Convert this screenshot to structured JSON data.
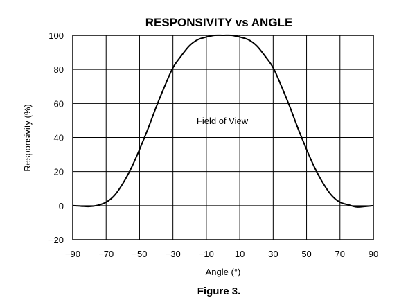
{
  "chart_data": {
    "type": "line",
    "title": "RESPONSIVITY vs ANGLE",
    "xlabel": "Angle (°)",
    "ylabel": "Responsivity (%)",
    "xlim": [
      -90,
      90
    ],
    "ylim": [
      -20,
      100
    ],
    "xticks": [
      -90,
      -70,
      -50,
      -30,
      -10,
      10,
      30,
      50,
      70,
      90
    ],
    "xtick_labels": [
      "−90",
      "−70",
      "−50",
      "−30",
      "−10",
      "10",
      "30",
      "50",
      "70",
      "90"
    ],
    "yticks": [
      -20,
      0,
      20,
      40,
      60,
      80,
      100
    ],
    "ytick_labels": [
      "−20",
      "0",
      "20",
      "40",
      "60",
      "80",
      "100"
    ],
    "grid": true,
    "annotation": "Field of View",
    "series": [
      {
        "x": [
          -90,
          -85,
          -80,
          -75,
          -70,
          -65,
          -60,
          -55,
          -50,
          -45,
          -40,
          -35,
          -30,
          -25,
          -20,
          -15,
          -10,
          -5,
          0,
          5,
          10,
          15,
          20,
          25,
          30,
          35,
          40,
          45,
          50,
          55,
          60,
          65,
          70,
          75,
          80,
          85,
          90
        ],
        "y": [
          0,
          -0.3,
          -0.5,
          0.2,
          2,
          6,
          13,
          22,
          33,
          45,
          58,
          70,
          81,
          88,
          94,
          97.5,
          99,
          100,
          100,
          100,
          99,
          97.5,
          94,
          88,
          81,
          70,
          58,
          45,
          33,
          22,
          13,
          6,
          2,
          0.5,
          -0.8,
          -0.5,
          0
        ]
      }
    ]
  },
  "caption": "Figure 3."
}
